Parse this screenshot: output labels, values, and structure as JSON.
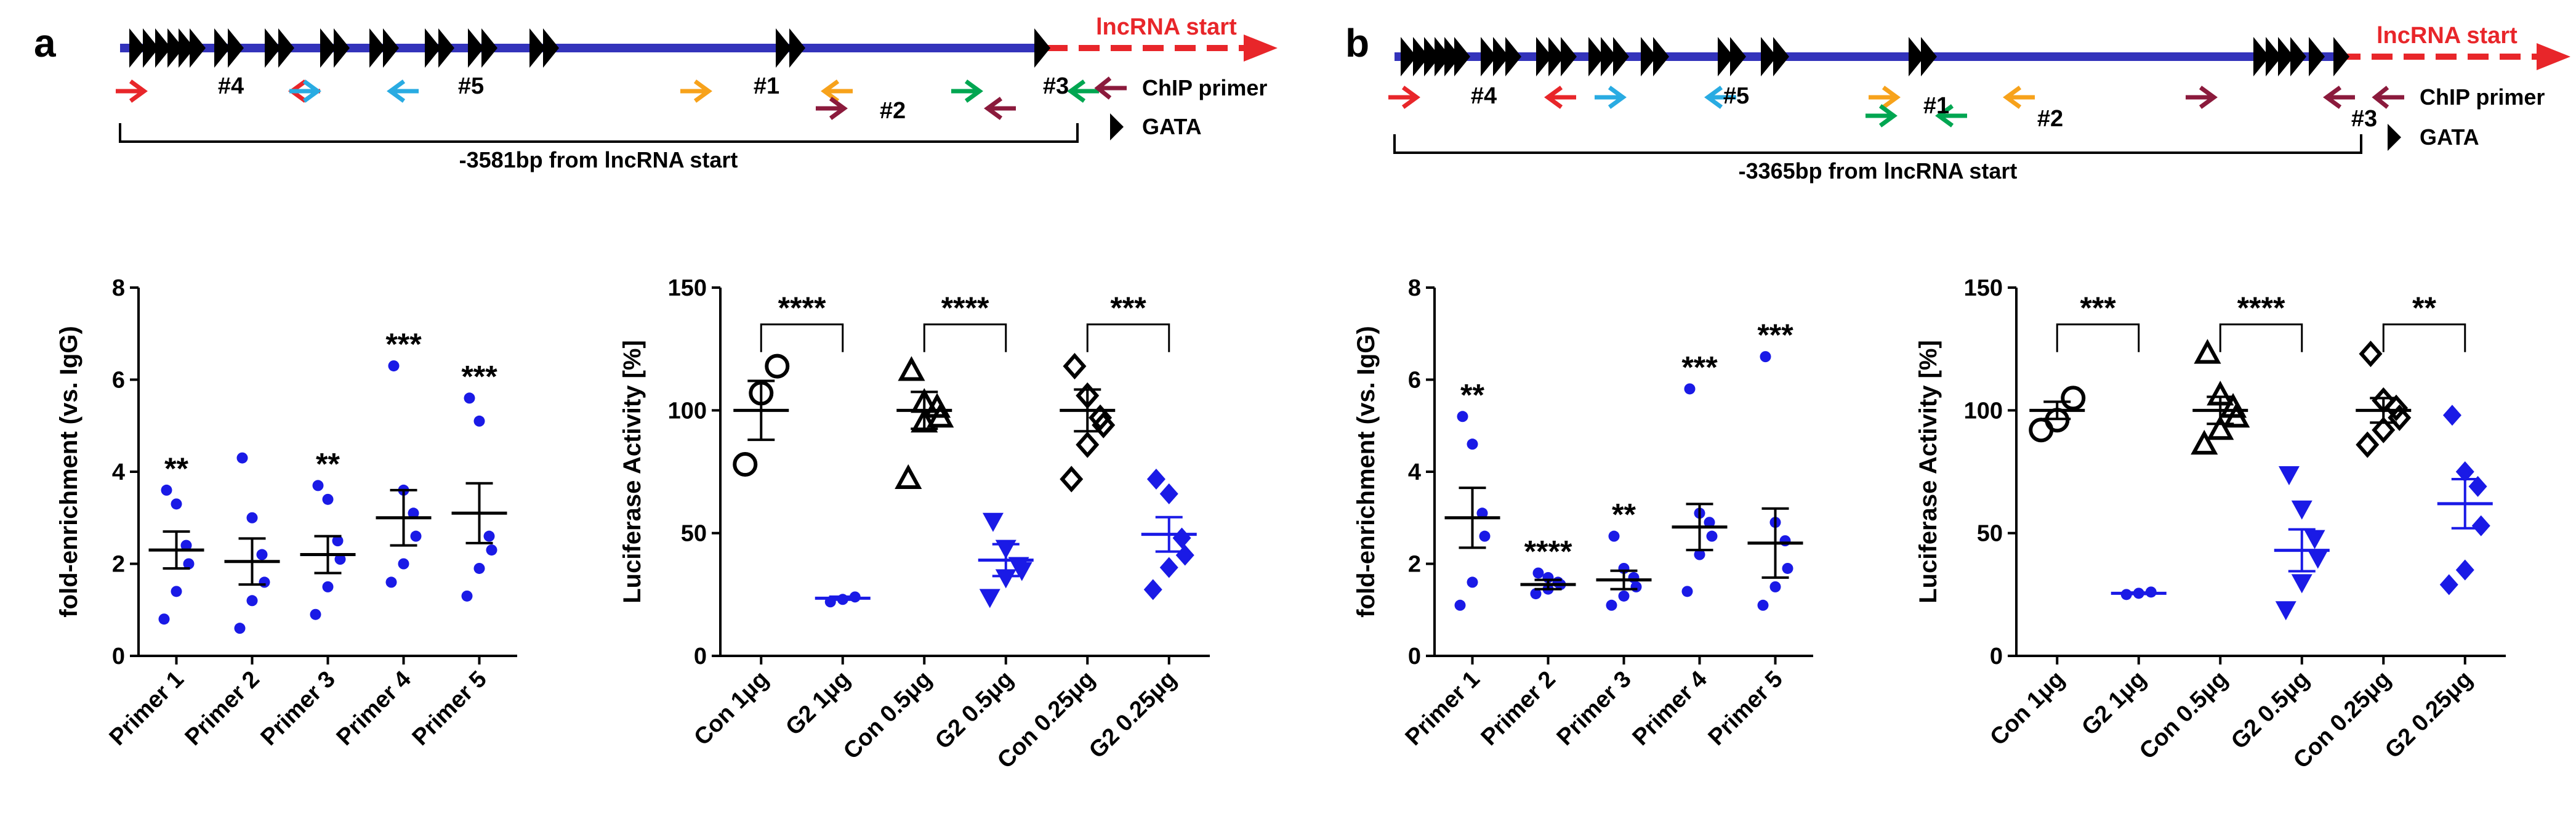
{
  "colors": {
    "line": "#3333bb",
    "lnc": "#e8262a",
    "gata": "#000000",
    "blue": "#1a1ae6",
    "black": "#000000",
    "primer_colors": [
      "#e8262a",
      "#e8262a",
      "#29abe2",
      "#29abe2",
      "#f7a21b",
      "#f7a21b",
      "#00a651",
      "#00a651",
      "#8b1a3c",
      "#8b1a3c"
    ]
  },
  "panels": [
    {
      "label": "a",
      "schematic": {
        "lnc_label": "lncRNA start",
        "bracket_label": "-3581bp from lncRNA start",
        "legend_primer": "ChIP primer",
        "legend_gata": "GATA",
        "primer_labels": [
          "#4",
          "#5",
          "#1",
          "#2",
          "#3"
        ],
        "gata_count": 23
      }
    },
    {
      "label": "b",
      "schematic": {
        "lnc_label": "lncRNA start",
        "bracket_label": "-3365bp from lncRNA start",
        "legend_primer": "ChIP primer",
        "legend_gata": "GATA",
        "primer_labels": [
          "#4",
          "#5",
          "#1",
          "#2",
          "#3"
        ],
        "gata_count": 23
      }
    }
  ],
  "chart_data": [
    {
      "panel": "a",
      "type": "scatter",
      "ylabel": "fold-enrichment (vs. IgG)",
      "ylim": [
        0,
        8
      ],
      "yticks": [
        0,
        2,
        4,
        6,
        8
      ],
      "categories": [
        "Primer 1",
        "Primer 2",
        "Primer 3",
        "Primer 4",
        "Primer 5"
      ],
      "points": [
        [
          0.8,
          1.4,
          2.0,
          2.4,
          3.3,
          3.6
        ],
        [
          0.6,
          1.2,
          1.6,
          2.2,
          3.0,
          4.3
        ],
        [
          0.9,
          1.5,
          2.1,
          2.5,
          3.4,
          3.7
        ],
        [
          1.6,
          2.0,
          2.6,
          3.1,
          3.6,
          6.3
        ],
        [
          1.3,
          1.9,
          2.3,
          2.6,
          5.1,
          5.6
        ]
      ],
      "means": [
        2.3,
        2.05,
        2.2,
        3.0,
        3.1
      ],
      "sems": [
        0.4,
        0.5,
        0.4,
        0.6,
        0.65
      ],
      "significance": [
        "**",
        "",
        "**",
        "***",
        "***"
      ],
      "marker": "dot",
      "color": "blue"
    },
    {
      "panel": "a",
      "type": "scatter",
      "ylabel": "Luciferase Activity [%]",
      "ylim": [
        0,
        150
      ],
      "yticks": [
        0,
        50,
        100,
        150
      ],
      "categories": [
        "Con 1μg",
        "G2 1μg",
        "Con 0.5μg",
        "G2 0.5μg",
        "Con 0.25μg",
        "G2 0.25μg"
      ],
      "points": [
        [
          78,
          107,
          118
        ],
        [
          22,
          23,
          24
        ],
        [
          72,
          95,
          97,
          101,
          103,
          116
        ],
        [
          24,
          32,
          35,
          37,
          44,
          55
        ],
        [
          72,
          86,
          94,
          97,
          106,
          118
        ],
        [
          27,
          36,
          41,
          48,
          66,
          72
        ]
      ],
      "markers": [
        "circle-open",
        "dot",
        "triangle-open",
        "triangle-down",
        "diamond-open",
        "diamond"
      ],
      "colors": [
        "black",
        "blue",
        "black",
        "blue",
        "black",
        "blue"
      ],
      "means": [
        100,
        23.5,
        100,
        39,
        100,
        49.5
      ],
      "sems": [
        12,
        0.6,
        7.5,
        6.5,
        8.5,
        7
      ],
      "comparisons": [
        {
          "from": 0,
          "to": 1,
          "label": "****",
          "y": 135
        },
        {
          "from": 2,
          "to": 3,
          "label": "****",
          "y": 135
        },
        {
          "from": 4,
          "to": 5,
          "label": "***",
          "y": 135
        }
      ]
    },
    {
      "panel": "b",
      "type": "scatter",
      "ylabel": "fold-enrichment (vs. IgG)",
      "ylim": [
        0,
        8
      ],
      "yticks": [
        0,
        2,
        4,
        6,
        8
      ],
      "categories": [
        "Primer 1",
        "Primer 2",
        "Primer 3",
        "Primer 4",
        "Primer 5"
      ],
      "points": [
        [
          1.1,
          1.6,
          2.6,
          3.1,
          4.6,
          5.2
        ],
        [
          1.35,
          1.45,
          1.55,
          1.6,
          1.7,
          1.8
        ],
        [
          1.1,
          1.3,
          1.5,
          1.7,
          1.9,
          2.6
        ],
        [
          1.4,
          2.2,
          2.6,
          2.9,
          3.1,
          5.8
        ],
        [
          1.1,
          1.5,
          1.9,
          2.5,
          2.9,
          6.5
        ]
      ],
      "means": [
        3.0,
        1.55,
        1.65,
        2.8,
        2.45
      ],
      "sems": [
        0.65,
        0.1,
        0.2,
        0.5,
        0.75
      ],
      "significance": [
        "**",
        "****",
        "**",
        "***",
        "***"
      ],
      "marker": "dot",
      "color": "blue"
    },
    {
      "panel": "b",
      "type": "scatter",
      "ylabel": "Luciferase Activity [%]",
      "ylim": [
        0,
        150
      ],
      "yticks": [
        0,
        50,
        100,
        150
      ],
      "categories": [
        "Con 1μg",
        "G2 1μg",
        "Con 0.5μg",
        "G2 0.5μg",
        "Con 0.25μg",
        "G2 0.25μg"
      ],
      "points": [
        [
          92,
          96,
          105
        ],
        [
          25,
          25.5,
          26
        ],
        [
          86,
          92,
          97,
          101,
          106,
          123
        ],
        [
          19,
          30,
          40,
          48,
          60,
          74
        ],
        [
          86,
          92,
          97,
          101,
          104,
          123
        ],
        [
          29,
          35,
          53,
          69,
          75,
          98
        ]
      ],
      "markers": [
        "circle-open",
        "dot",
        "triangle-open",
        "triangle-down",
        "diamond-open",
        "diamond"
      ],
      "colors": [
        "black",
        "blue",
        "black",
        "blue",
        "black",
        "blue"
      ],
      "means": [
        100,
        25.5,
        100,
        43,
        100,
        62
      ],
      "sems": [
        3.5,
        0.3,
        5.5,
        8.5,
        5,
        10
      ],
      "comparisons": [
        {
          "from": 0,
          "to": 1,
          "label": "***",
          "y": 135
        },
        {
          "from": 2,
          "to": 3,
          "label": "****",
          "y": 135
        },
        {
          "from": 4,
          "to": 5,
          "label": "**",
          "y": 135
        }
      ]
    }
  ]
}
